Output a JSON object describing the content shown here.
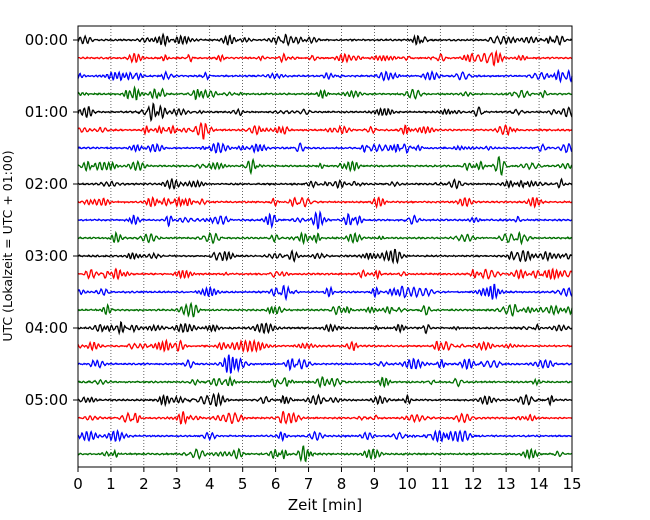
{
  "chart_data": {
    "type": "line",
    "title": "",
    "xlabel": "Zeit  [min]",
    "ylabel": "UTC (Lokalzeit = UTC + 01:00)",
    "xlim": [
      0,
      15
    ],
    "x_ticks": [
      "0",
      "1",
      "2",
      "3",
      "4",
      "5",
      "6",
      "7",
      "8",
      "9",
      "10",
      "11",
      "12",
      "13",
      "14",
      "15"
    ],
    "y_tick_labels": [
      "00:00",
      "01:00",
      "02:00",
      "03:00",
      "04:00",
      "05:00"
    ],
    "grid": "vertical dotted lines at each minute",
    "trace_interval_minutes": 15,
    "trace_count": 24,
    "trace_start_times": [
      "00:00",
      "00:15",
      "00:30",
      "00:45",
      "01:00",
      "01:15",
      "01:30",
      "01:45",
      "02:00",
      "02:15",
      "02:30",
      "02:45",
      "03:00",
      "03:15",
      "03:30",
      "03:45",
      "04:00",
      "04:15",
      "04:30",
      "04:45",
      "05:00",
      "05:15",
      "05:30",
      "05:45"
    ],
    "trace_colors": [
      "#000000",
      "#ff0000",
      "#0000ff",
      "#007000"
    ],
    "signal": "seismogram noise, short-period oscillations along each 15-minute trace"
  }
}
